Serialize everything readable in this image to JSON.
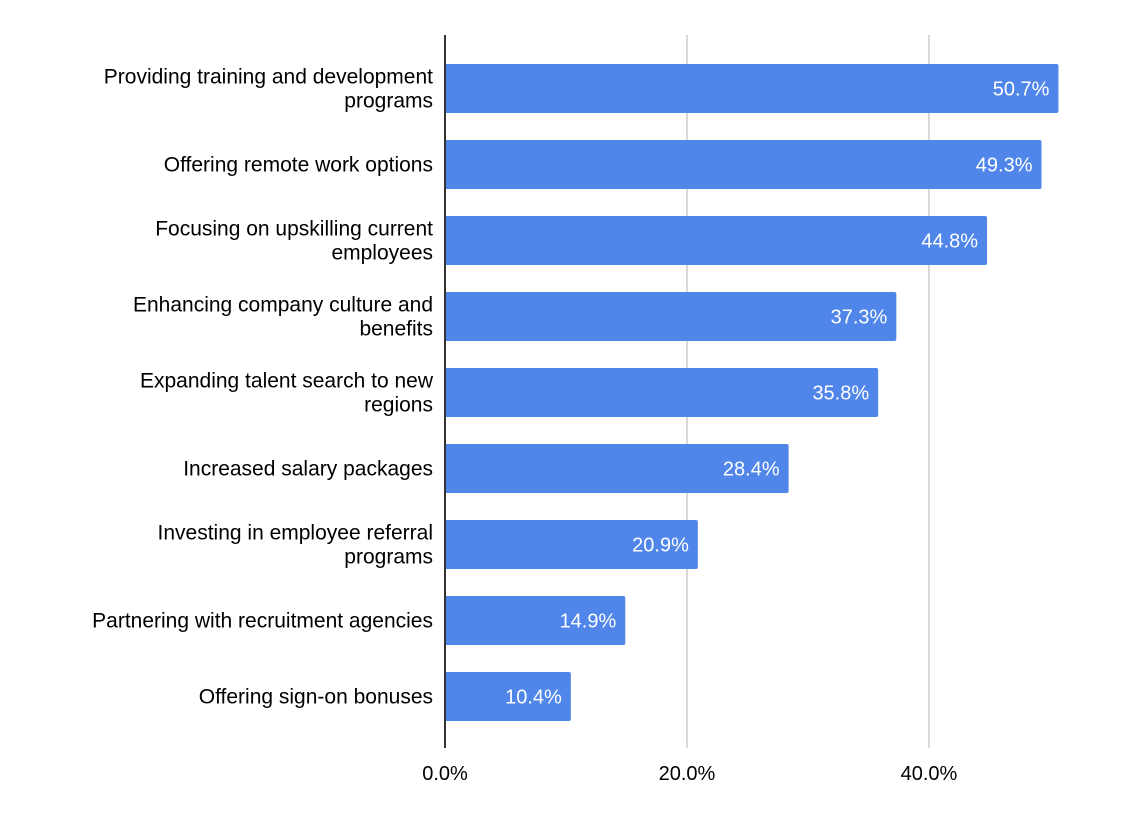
{
  "chart_data": {
    "type": "bar",
    "orientation": "horizontal",
    "title": "",
    "xlabel": "",
    "ylabel": "",
    "categories": [
      [
        "Providing training and development",
        "programs"
      ],
      [
        "Offering remote work options"
      ],
      [
        "Focusing on upskilling current",
        "employees"
      ],
      [
        "Enhancing company culture and",
        "benefits"
      ],
      [
        "Expanding talent search to new",
        "regions"
      ],
      [
        "Increased salary packages"
      ],
      [
        "Investing in employee referral",
        "programs"
      ],
      [
        "Partnering with recruitment agencies"
      ],
      [
        "Offering sign-on bonuses"
      ]
    ],
    "values": [
      50.7,
      49.3,
      44.8,
      37.3,
      35.8,
      28.4,
      20.9,
      14.9,
      10.4
    ],
    "data_labels": [
      "50.7%",
      "49.3%",
      "44.8%",
      "37.3%",
      "35.8%",
      "28.4%",
      "20.9%",
      "14.9%",
      "10.4%"
    ],
    "xlim": [
      0,
      56.2
    ],
    "x_ticks": [
      0,
      20,
      40
    ],
    "x_tick_labels": [
      "0.0%",
      "20.0%",
      "40.0%"
    ],
    "grid": true,
    "legend": "none",
    "colors": {
      "bar": "#5086ea",
      "grid": "#cccccc",
      "axis": "#333333",
      "data_label": "#ffffff",
      "text": "#000000"
    }
  }
}
